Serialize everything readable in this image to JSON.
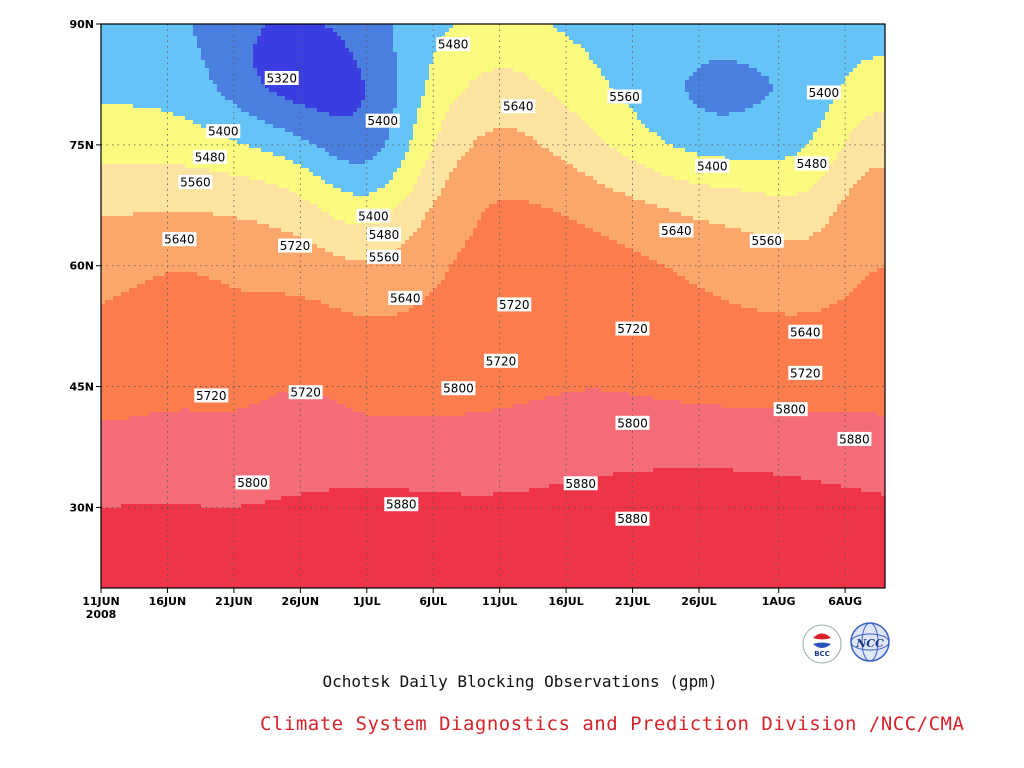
{
  "chart_data": {
    "type": "heatmap",
    "variant": "contour",
    "title": "Ochotsk Daily Blocking Observations (gpm)",
    "x_axis": {
      "ticks": [
        "11JUN",
        "16JUN",
        "21JUN",
        "26JUN",
        "1JUL",
        "6JUL",
        "11JUL",
        "16JUL",
        "21JUL",
        "26JUL",
        "1AUG",
        "6AUG"
      ],
      "tick_days": [
        0,
        5,
        10,
        15,
        20,
        25,
        30,
        35,
        40,
        45,
        51,
        56
      ],
      "year_label": "2008",
      "range_days": [
        0,
        59
      ]
    },
    "y_axis": {
      "ticks": [
        "30N",
        "45N",
        "60N",
        "75N",
        "90N"
      ],
      "tick_values": [
        30,
        45,
        60,
        75,
        90
      ],
      "range": [
        20,
        90
      ]
    },
    "contour_levels": [
      5320,
      5400,
      5480,
      5560,
      5640,
      5720,
      5800,
      5880
    ],
    "contour_labels": [
      {
        "text": "5480",
        "day": 26.5,
        "lat": 87.5
      },
      {
        "text": "5320",
        "day": 13.6,
        "lat": 83.3
      },
      {
        "text": "5560",
        "day": 39.4,
        "lat": 81.0
      },
      {
        "text": "5640",
        "day": 31.4,
        "lat": 79.8
      },
      {
        "text": "5400",
        "day": 54.4,
        "lat": 81.5
      },
      {
        "text": "5400",
        "day": 21.2,
        "lat": 78.0
      },
      {
        "text": "5400",
        "day": 9.2,
        "lat": 76.7
      },
      {
        "text": "5480",
        "day": 8.2,
        "lat": 73.5
      },
      {
        "text": "5400",
        "day": 46.0,
        "lat": 72.4
      },
      {
        "text": "5480",
        "day": 53.5,
        "lat": 72.7
      },
      {
        "text": "5560",
        "day": 7.1,
        "lat": 70.4
      },
      {
        "text": "5400",
        "day": 20.5,
        "lat": 66.2
      },
      {
        "text": "5480",
        "day": 21.3,
        "lat": 63.9
      },
      {
        "text": "5640",
        "day": 5.9,
        "lat": 63.3
      },
      {
        "text": "5720",
        "day": 14.6,
        "lat": 62.5
      },
      {
        "text": "5560",
        "day": 21.3,
        "lat": 61.1
      },
      {
        "text": "5640",
        "day": 43.3,
        "lat": 64.4
      },
      {
        "text": "5560",
        "day": 50.1,
        "lat": 63.1
      },
      {
        "text": "5640",
        "day": 22.9,
        "lat": 56.0
      },
      {
        "text": "5720",
        "day": 31.1,
        "lat": 55.2
      },
      {
        "text": "5720",
        "day": 40.0,
        "lat": 52.2
      },
      {
        "text": "5640",
        "day": 53.0,
        "lat": 51.8
      },
      {
        "text": "5720",
        "day": 30.1,
        "lat": 48.2
      },
      {
        "text": "5720",
        "day": 8.3,
        "lat": 43.9
      },
      {
        "text": "5720",
        "day": 15.4,
        "lat": 44.3
      },
      {
        "text": "5800",
        "day": 26.9,
        "lat": 44.8
      },
      {
        "text": "5720",
        "day": 53.0,
        "lat": 46.7
      },
      {
        "text": "5800",
        "day": 51.9,
        "lat": 42.2
      },
      {
        "text": "5800",
        "day": 40.0,
        "lat": 40.5
      },
      {
        "text": "5880",
        "day": 56.7,
        "lat": 38.5
      },
      {
        "text": "5800",
        "day": 11.4,
        "lat": 33.1
      },
      {
        "text": "5880",
        "day": 22.6,
        "lat": 30.4
      },
      {
        "text": "5880",
        "day": 36.1,
        "lat": 33.0
      },
      {
        "text": "5880",
        "day": 40.0,
        "lat": 28.6
      }
    ],
    "colors": {
      "5320": "#3a3de0",
      "5400": "#4a7fe0",
      "5480": "#66c3f7",
      "5560": "#fafa80",
      "5640": "#fde3a0",
      "5720": "#fba66a",
      "5800": "#fb7c4c",
      "5880": "#f46c78",
      "above": "#ee3446"
    }
  },
  "footer": {
    "caption": "Ochotsk Daily Blocking Observations (gpm)",
    "credit": "Climate System Diagnostics and Prediction Division /NCC/CMA",
    "logos": [
      "BCC",
      "NCC"
    ]
  }
}
